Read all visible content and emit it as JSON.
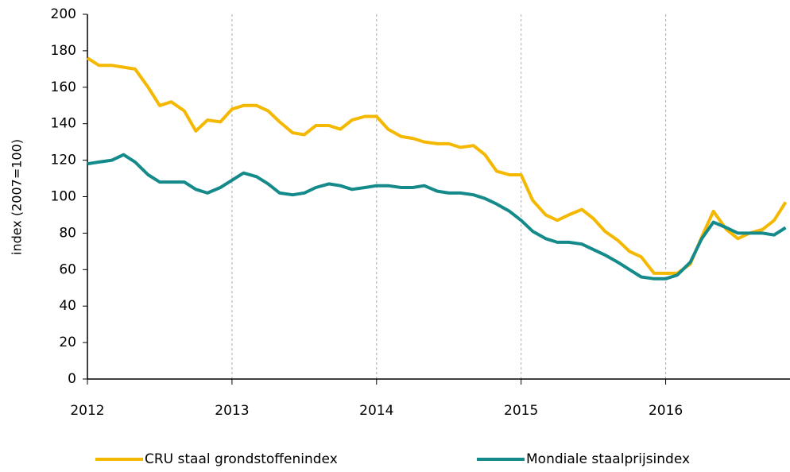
{
  "chart_data": {
    "type": "line",
    "y_label": "index (2007=100)",
    "x": [
      2012,
      2012.08,
      2012.17,
      2012.25,
      2012.33,
      2012.42,
      2012.5,
      2012.58,
      2012.67,
      2012.75,
      2012.83,
      2012.92,
      2013,
      2013.08,
      2013.17,
      2013.25,
      2013.33,
      2013.42,
      2013.5,
      2013.58,
      2013.67,
      2013.75,
      2013.83,
      2013.92,
      2014,
      2014.08,
      2014.17,
      2014.25,
      2014.33,
      2014.42,
      2014.5,
      2014.58,
      2014.67,
      2014.75,
      2014.83,
      2014.92,
      2015,
      2015.08,
      2015.17,
      2015.25,
      2015.33,
      2015.42,
      2015.5,
      2015.58,
      2015.67,
      2015.75,
      2015.83,
      2015.92,
      2016,
      2016.08,
      2016.17,
      2016.25,
      2016.33,
      2016.42,
      2016.5,
      2016.58,
      2016.67,
      2016.75,
      2016.83
    ],
    "series": [
      {
        "name": "CRU staal grondstoffenindex",
        "color": "#f5b800",
        "values": [
          176,
          172,
          172,
          171,
          170,
          160,
          150,
          152,
          147,
          136,
          142,
          141,
          148,
          150,
          150,
          147,
          141,
          135,
          134,
          139,
          139,
          137,
          142,
          144,
          144,
          137,
          133,
          132,
          130,
          129,
          129,
          127,
          128,
          123,
          114,
          112,
          112,
          98,
          90,
          87,
          90,
          93,
          88,
          81,
          76,
          70,
          67,
          58,
          58,
          58,
          63,
          78,
          92,
          82,
          77,
          80,
          82,
          87,
          97
        ]
      },
      {
        "name": "Mondiale staalprijsindex",
        "color": "#148a8a",
        "values": [
          118,
          119,
          120,
          123,
          119,
          112,
          108,
          108,
          108,
          104,
          102,
          105,
          109,
          113,
          111,
          107,
          102,
          101,
          102,
          105,
          107,
          106,
          104,
          105,
          106,
          106,
          105,
          105,
          106,
          103,
          102,
          102,
          101,
          99,
          96,
          92,
          87,
          81,
          77,
          75,
          75,
          74,
          71,
          68,
          64,
          60,
          56,
          55,
          55,
          57,
          64,
          77,
          86,
          83,
          80,
          80,
          80,
          79,
          83
        ]
      }
    ],
    "xlim": [
      2012,
      2016.86
    ],
    "xticks": [
      2012,
      2013,
      2014,
      2015,
      2016
    ],
    "ylim": [
      0,
      200
    ],
    "yticks": [
      0,
      20,
      40,
      60,
      80,
      100,
      120,
      140,
      160,
      180,
      200
    ],
    "grid": "x",
    "legend": "bottom"
  }
}
